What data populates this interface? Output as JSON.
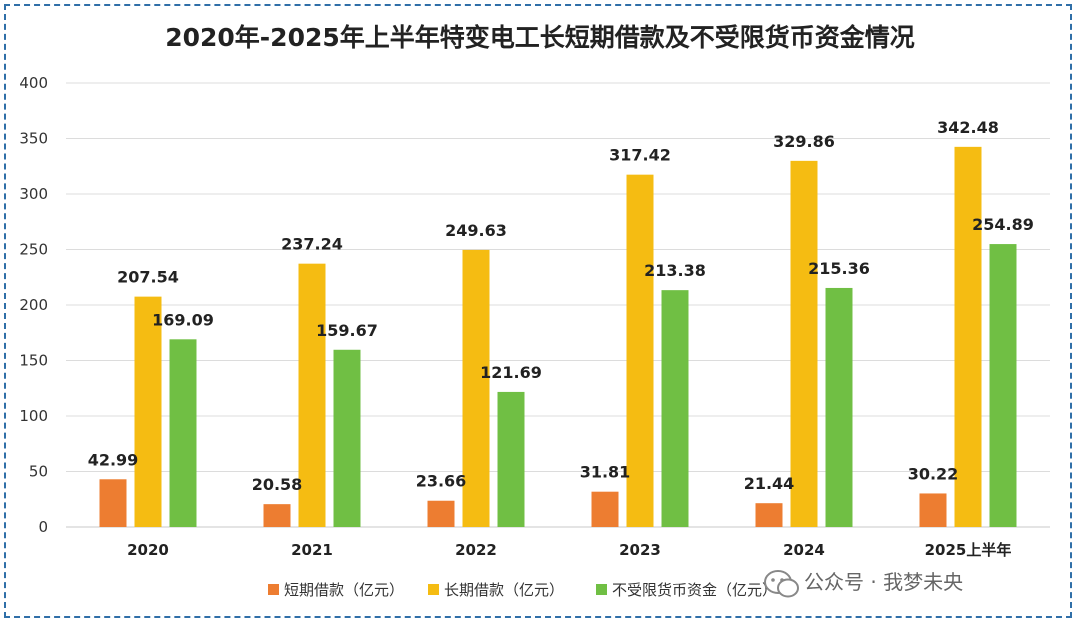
{
  "watermark": "公众号 · 我梦未央",
  "chart_data": {
    "type": "bar",
    "title": "2020年-2025年上半年特变电工长短期借款及不受限货币资金情况",
    "categories": [
      "2020",
      "2021",
      "2022",
      "2023",
      "2024",
      "2025上半年"
    ],
    "series": [
      {
        "name": "短期借款（亿元）",
        "color": "#ed7d31",
        "values": [
          42.99,
          20.58,
          23.66,
          31.81,
          21.44,
          30.22
        ]
      },
      {
        "name": "长期借款（亿元）",
        "color": "#f5bc12",
        "values": [
          207.54,
          237.24,
          249.63,
          317.42,
          329.86,
          342.48
        ]
      },
      {
        "name": "不受限货币资金（亿元）",
        "color": "#70bf44",
        "values": [
          169.09,
          159.67,
          121.69,
          213.38,
          215.36,
          254.89
        ]
      }
    ],
    "yticks": [
      0,
      50,
      100,
      150,
      200,
      250,
      300,
      350,
      400
    ],
    "ylim": [
      0,
      400
    ],
    "grid": true,
    "legend": "bottom-center",
    "data_labels": true
  }
}
